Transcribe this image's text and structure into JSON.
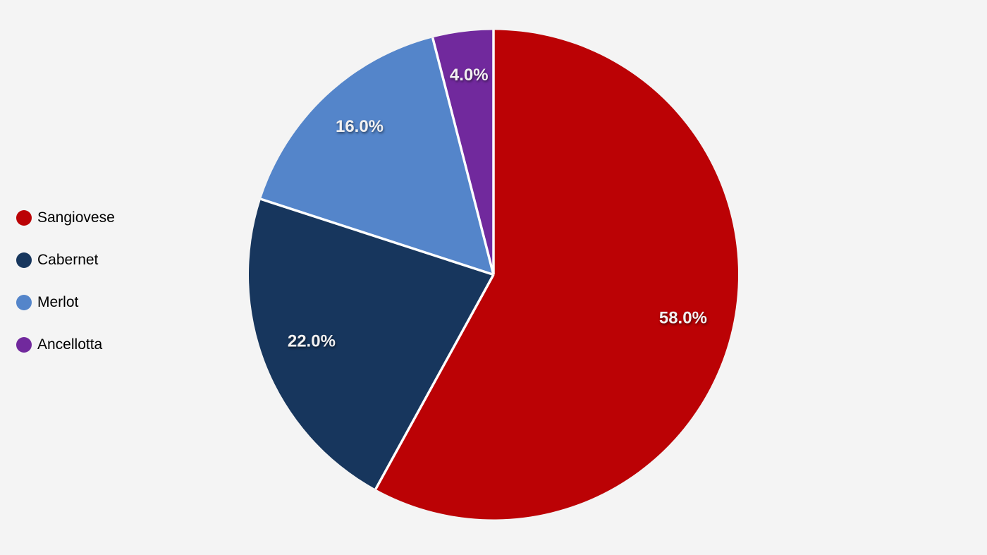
{
  "chart_data": {
    "type": "pie",
    "title": "",
    "categories": [
      "Sangiovese",
      "Cabernet",
      "Merlot",
      "Ancellotta"
    ],
    "values": [
      58.0,
      22.0,
      16.0,
      4.0
    ],
    "slice_labels": [
      "58.0%",
      "22.0%",
      "16.0%",
      "4.0%"
    ],
    "colors": [
      "#BB0205",
      "#17365D",
      "#5485CA",
      "#71299D"
    ],
    "start_angle_deg": 0,
    "direction": "clockwise",
    "legend_position": "left",
    "slice_label_color": "#F2F1F1",
    "separator_color": "#FFFFFF",
    "background_color": "#F4F4F4"
  },
  "legend": {
    "items": [
      {
        "label": "Sangiovese",
        "color": "#BB0205"
      },
      {
        "label": "Cabernet",
        "color": "#17365D"
      },
      {
        "label": "Merlot",
        "color": "#5485CA"
      },
      {
        "label": "Ancellotta",
        "color": "#71299D"
      }
    ]
  }
}
